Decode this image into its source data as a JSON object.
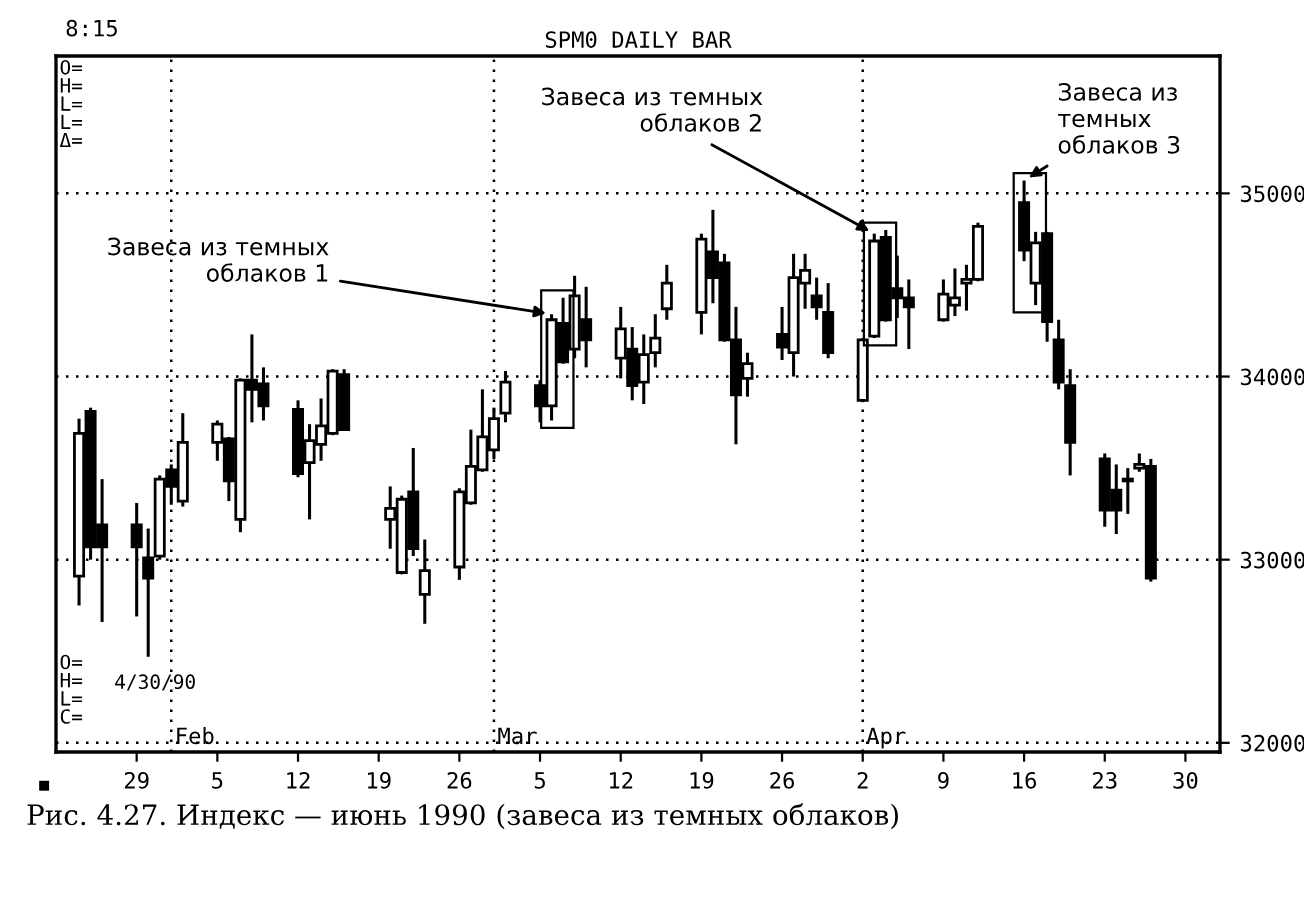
{
  "chart_data": {
    "type": "candlestick",
    "title": "SPM0 DAILY BAR",
    "x": [
      "1990-01-24",
      "1990-01-25",
      "1990-01-26",
      "1990-01-29",
      "1990-01-30",
      "1990-01-31",
      "1990-02-01",
      "1990-02-02",
      "1990-02-05",
      "1990-02-06",
      "1990-02-07",
      "1990-02-08",
      "1990-02-09",
      "1990-02-12",
      "1990-02-13",
      "1990-02-14",
      "1990-02-15",
      "1990-02-16",
      "1990-02-20",
      "1990-02-21",
      "1990-02-22",
      "1990-02-23",
      "1990-02-26",
      "1990-02-27",
      "1990-02-28",
      "1990-03-01",
      "1990-03-02",
      "1990-03-05",
      "1990-03-06",
      "1990-03-07",
      "1990-03-08",
      "1990-03-09",
      "1990-03-12",
      "1990-03-13",
      "1990-03-14",
      "1990-03-15",
      "1990-03-16",
      "1990-03-19",
      "1990-03-20",
      "1990-03-21",
      "1990-03-22",
      "1990-03-23",
      "1990-03-26",
      "1990-03-27",
      "1990-03-28",
      "1990-03-29",
      "1990-03-30",
      "1990-04-02",
      "1990-04-03",
      "1990-04-04",
      "1990-04-05",
      "1990-04-06",
      "1990-04-09",
      "1990-04-10",
      "1990-04-11",
      "1990-04-12",
      "1990-04-16",
      "1990-04-17",
      "1990-04-18",
      "1990-04-19",
      "1990-04-20",
      "1990-04-23",
      "1990-04-24",
      "1990-04-25",
      "1990-04-26",
      "1990-04-27"
    ],
    "ohlc": [
      [
        32910,
        33770,
        32750,
        33690
      ],
      [
        33810,
        33830,
        33000,
        33070
      ],
      [
        33190,
        33440,
        32660,
        33070
      ],
      [
        33190,
        33310,
        32690,
        33070
      ],
      [
        33010,
        33170,
        32470,
        32900
      ],
      [
        33020,
        33460,
        33000,
        33440
      ],
      [
        33490,
        33520,
        33300,
        33400
      ],
      [
        33320,
        33800,
        33290,
        33640
      ],
      [
        33640,
        33760,
        33540,
        33740
      ],
      [
        33660,
        33670,
        33320,
        33430
      ],
      [
        33220,
        33990,
        33150,
        33980
      ],
      [
        33980,
        34230,
        33750,
        33930
      ],
      [
        33960,
        34050,
        33760,
        33840
      ],
      [
        33820,
        33870,
        33450,
        33470
      ],
      [
        33530,
        33740,
        33220,
        33650
      ],
      [
        33630,
        33880,
        33540,
        33730
      ],
      [
        33690,
        34040,
        33680,
        34030
      ],
      [
        34010,
        34040,
        33710,
        33710
      ],
      [
        33220,
        33400,
        33060,
        33280
      ],
      [
        32930,
        33350,
        32920,
        33330
      ],
      [
        33370,
        33610,
        33020,
        33060
      ],
      [
        32810,
        33110,
        32650,
        32940
      ],
      [
        32960,
        33390,
        32890,
        33370
      ],
      [
        33310,
        33710,
        33300,
        33510
      ],
      [
        33490,
        33930,
        33480,
        33670
      ],
      [
        33600,
        33830,
        33550,
        33770
      ],
      [
        33800,
        34030,
        33750,
        33970
      ],
      [
        33950,
        33980,
        33750,
        33840
      ],
      [
        33840,
        34340,
        33760,
        34310
      ],
      [
        34290,
        34430,
        34070,
        34080
      ],
      [
        34150,
        34550,
        34100,
        34440
      ],
      [
        34310,
        34490,
        34050,
        34200
      ],
      [
        34100,
        34380,
        33990,
        34260
      ],
      [
        34150,
        34270,
        33870,
        33950
      ],
      [
        33970,
        34230,
        33850,
        34120
      ],
      [
        34130,
        34340,
        34050,
        34210
      ],
      [
        34370,
        34610,
        34310,
        34510
      ],
      [
        34350,
        34780,
        34230,
        34750
      ],
      [
        34680,
        34910,
        34400,
        34540
      ],
      [
        34620,
        34670,
        34190,
        34200
      ],
      [
        34200,
        34380,
        33630,
        33900
      ],
      [
        33990,
        34130,
        33890,
        34070
      ],
      [
        34230,
        34380,
        34090,
        34160
      ],
      [
        34130,
        34670,
        34000,
        34540
      ],
      [
        34510,
        34670,
        34370,
        34580
      ],
      [
        34440,
        34540,
        34310,
        34380
      ],
      [
        34350,
        34510,
        34100,
        34130
      ],
      [
        33870,
        34210,
        33860,
        34200
      ],
      [
        34220,
        34780,
        34210,
        34740
      ],
      [
        34760,
        34800,
        34300,
        34310
      ],
      [
        34480,
        34660,
        34320,
        34430
      ],
      [
        34430,
        34530,
        34150,
        34380
      ],
      [
        34310,
        34530,
        34300,
        34450
      ],
      [
        34390,
        34590,
        34330,
        34430
      ],
      [
        34510,
        34610,
        34360,
        34530
      ],
      [
        34530,
        34840,
        34520,
        34820
      ],
      [
        34950,
        35070,
        34630,
        34690
      ],
      [
        34510,
        34790,
        34390,
        34730
      ],
      [
        34780,
        34790,
        34190,
        34300
      ],
      [
        34200,
        34310,
        33930,
        33970
      ],
      [
        33950,
        34040,
        33460,
        33640
      ],
      [
        33550,
        33580,
        33180,
        33270
      ],
      [
        33380,
        33520,
        33140,
        33270
      ],
      [
        33440,
        33500,
        33250,
        33430
      ],
      [
        33500,
        33580,
        33480,
        33520
      ],
      [
        33510,
        33550,
        32880,
        32900
      ]
    ],
    "xlim": [
      "1990-01-22",
      "1990-05-03"
    ],
    "xticks": [
      {
        "value": "1990-01-29",
        "label": "29"
      },
      {
        "value": "1990-02-05",
        "label": "5"
      },
      {
        "value": "1990-02-12",
        "label": "12"
      },
      {
        "value": "1990-02-19",
        "label": "19"
      },
      {
        "value": "1990-02-26",
        "label": "26"
      },
      {
        "value": "1990-03-05",
        "label": "5"
      },
      {
        "value": "1990-03-12",
        "label": "12"
      },
      {
        "value": "1990-03-19",
        "label": "19"
      },
      {
        "value": "1990-03-26",
        "label": "26"
      },
      {
        "value": "1990-04-02",
        "label": "2"
      },
      {
        "value": "1990-04-09",
        "label": "9"
      },
      {
        "value": "1990-04-16",
        "label": "16"
      },
      {
        "value": "1990-04-23",
        "label": "23"
      },
      {
        "value": "1990-04-30",
        "label": "30"
      }
    ],
    "ylim": [
      31950,
      35750
    ],
    "yticks": [
      32000,
      33000,
      34000,
      35000
    ],
    "grid": "y",
    "ref_lines": [
      {
        "axis": "x",
        "value": "1990-02-01",
        "label": "Feb",
        "line_style": "dotted"
      },
      {
        "axis": "x",
        "value": "1990-03-01",
        "label": "Mar",
        "line_style": "dotted"
      },
      {
        "axis": "x",
        "value": "1990-04-02",
        "label": "Apr",
        "line_style": "dotted"
      }
    ],
    "annotations": [
      "8:15",
      "O=\nH=\nL=\nL=\nΔ=",
      "4/30/90",
      "O=\nH=\nL=\nC=",
      "■",
      {
        "text": "Завеса из темных\nоблаков 1",
        "x": "1990-03-06",
        "y": 34340
      },
      {
        "text": "Завеса из темных\nоблаков 2",
        "x": "1990-04-03",
        "y": 34780
      },
      {
        "text": "Завеса из\nтемных\nоблаков 3",
        "x": "1990-04-16",
        "y": 35070
      },
      "Рис. 4.27. Индекс — июнь 1990 (завеса из темных облаков)"
    ]
  }
}
